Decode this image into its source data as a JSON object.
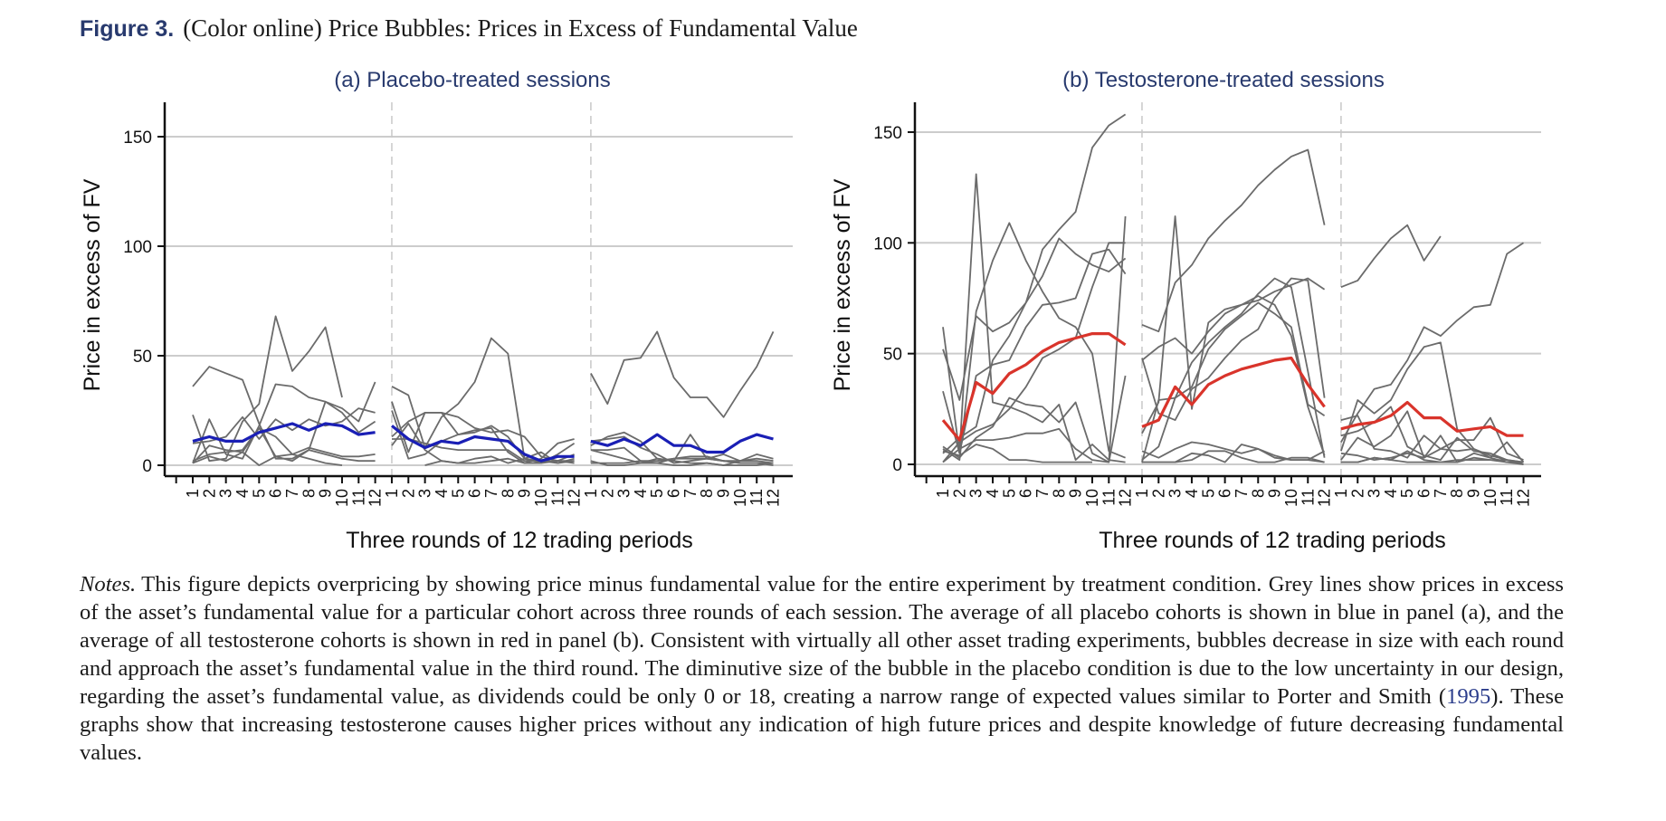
{
  "figure": {
    "label": "Figure 3.",
    "caption": "(Color online) Price Bubbles: Prices in Excess of Fundamental Value"
  },
  "notes": {
    "label": "Notes.",
    "text_before_cite": "This figure depicts overpricing by showing price minus fundamental value for the entire experiment by treatment condition. Grey lines show prices in excess of the asset’s fundamental value for a particular cohort across three rounds of each session. The average of all placebo cohorts is shown in blue in panel (a), and the average of all testosterone cohorts is shown in red in panel (b). Consistent with virtually all other asset trading experiments, bubbles decrease in size with each round and approach the asset’s fundamental value in the third round. The diminutive size of the bubble in the placebo condition is due to the low uncertainty in our design, regarding the asset’s fundamental value, as dividends could be only 0 or 18, creating a narrow range of expected values similar to Porter and Smith (",
    "cite": "1995",
    "text_after_cite": "). These graphs show that increasing testosterone causes higher prices without any indication of high future prices and despite knowledge of future decreasing fundamental values."
  },
  "colors": {
    "cohort_line": "#6b6b6b",
    "placebo_average": "#1a1fb5",
    "testosterone_average": "#d9342b",
    "gridline": "#cccccc",
    "round_separator": "#c8c8c8",
    "title_blue": "#283a6e"
  },
  "chart_data": [
    {
      "type": "line",
      "title": "(a) Placebo-treated sessions",
      "xlabel": "Three rounds of 12 trading periods",
      "ylabel": "Price in excess of FV",
      "ylim": [
        -7,
        165
      ],
      "yticks": [
        0,
        50,
        100,
        150
      ],
      "grid": true,
      "rounds": 3,
      "periods_per_round": 12,
      "xtick_labels": [
        "1",
        "2",
        "3",
        "4",
        "5",
        "6",
        "7",
        "8",
        "9",
        "10",
        "11",
        "12",
        "1",
        "2",
        "3",
        "4",
        "5",
        "6",
        "7",
        "8",
        "9",
        "10",
        "11",
        "12",
        "1",
        "2",
        "3",
        "4",
        "5",
        "6",
        "7",
        "8",
        "9",
        "10",
        "11",
        "12"
      ],
      "average": {
        "name": "Placebo average",
        "rounds": [
          [
            11,
            13,
            11,
            11,
            15,
            17,
            19,
            16,
            19,
            18,
            14,
            15
          ],
          [
            18,
            12,
            8,
            11,
            10,
            13,
            12,
            11,
            5,
            2,
            4,
            4
          ],
          [
            11,
            9,
            12,
            9,
            14,
            9,
            9,
            6,
            6,
            11,
            14,
            12
          ]
        ]
      },
      "cohorts": [
        {
          "rounds": [
            [
              36,
              45,
              42,
              39,
              19,
              3,
              3,
              7,
              5,
              3,
              2,
              2
            ],
            [
              36,
              32,
              8,
              22,
              28,
              38,
              58,
              51,
              3,
              1,
              5,
              10
            ],
            [
              42,
              28,
              48,
              49,
              61,
              40,
              31,
              31,
              22,
              34,
              45,
              61
            ]
          ]
        },
        {
          "rounds": [
            [
              23,
              2,
              3,
              20,
              28,
              68,
              43,
              52,
              63,
              31,
              null,
              null
            ],
            [
              29,
              6,
              24,
              24,
              22,
              17,
              15,
              16,
              13,
              4,
              2,
              2
            ],
            [
              7,
              7,
              8,
              2,
              2,
              3,
              4,
              4,
              2,
              1,
              1,
              1
            ]
          ]
        },
        {
          "rounds": [
            [
              1,
              21,
              5,
              3,
              18,
              37,
              36,
              31,
              29,
              24,
              15,
              20
            ],
            [
              13,
              20,
              24,
              24,
              14,
              15,
              18,
              13,
              3,
              2,
              1,
              2
            ],
            [
              9,
              13,
              15,
              11,
              3,
              2,
              14,
              3,
              2,
              2,
              2,
              1
            ]
          ]
        },
        {
          "rounds": [
            [
              1,
              9,
              7,
              6,
              0,
              4,
              2,
              7,
              29,
              26,
              20,
              38
            ],
            [
              9,
              19,
              7,
              2,
              1,
              1,
              2,
              3,
              1,
              3,
              10,
              12
            ],
            [
              11,
              12,
              13,
              8,
              5,
              1,
              2,
              3,
              5,
              2,
              3,
              2
            ]
          ]
        },
        {
          "rounds": [
            [
              10,
              11,
              13,
              22,
              12,
              21,
              16,
              21,
              18,
              20,
              26,
              24
            ],
            [
              25,
              3,
              5,
              11,
              14,
              16,
              17,
              6,
              1,
              1,
              2,
              5
            ],
            [
              2,
              0,
              0,
              1,
              3,
              2,
              1,
              1,
              0,
              2,
              5,
              3
            ]
          ]
        },
        {
          "rounds": [
            [
              1,
              4,
              2,
              6,
              17,
              13,
              5,
              3,
              1,
              0,
              null,
              1
            ],
            [
              null,
              null,
              0,
              2,
              1,
              3,
              4,
              1,
              3,
              6,
              1,
              3
            ],
            [
              1,
              1,
              1,
              2,
              1,
              0,
              0,
              1,
              0,
              0,
              0,
              1
            ]
          ]
        },
        {
          "rounds": [
            [
              2,
              5,
              6,
              7,
              17,
              4,
              5,
              8,
              6,
              4,
              4,
              5
            ],
            [
              12,
              12,
              10,
              8,
              7,
              7,
              7,
              7,
              2,
              2,
              2,
              1
            ],
            [
              7,
              5,
              3,
              1,
              1,
              3,
              3,
              3,
              2,
              1,
              1,
              0
            ]
          ]
        }
      ]
    },
    {
      "type": "line",
      "title": "(b) Testosterone-treated sessions",
      "xlabel": "Three rounds of 12 trading periods",
      "ylabel": "Price in excess of FV",
      "ylim": [
        -7,
        165
      ],
      "yticks": [
        0,
        50,
        100,
        150
      ],
      "grid": true,
      "rounds": 3,
      "periods_per_round": 12,
      "xtick_labels": [
        "1",
        "2",
        "3",
        "4",
        "5",
        "6",
        "7",
        "8",
        "9",
        "10",
        "11",
        "12",
        "1",
        "2",
        "3",
        "4",
        "5",
        "6",
        "7",
        "8",
        "9",
        "10",
        "11",
        "12",
        "1",
        "2",
        "3",
        "4",
        "5",
        "6",
        "7",
        "8",
        "9",
        "10",
        "11",
        "12"
      ],
      "average": {
        "name": "Testosterone average",
        "rounds": [
          [
            20,
            11,
            37,
            32,
            41,
            45,
            51,
            55,
            57,
            59,
            59,
            54
          ],
          [
            17,
            20,
            35,
            27,
            36,
            40,
            43,
            45,
            47,
            48,
            36,
            26
          ],
          [
            16,
            18,
            19,
            22,
            28,
            21,
            21,
            15,
            16,
            17,
            13,
            13
          ]
        ]
      },
      "cohorts": [
        {
          "rounds": [
            [
              62,
              5,
              131,
              28,
              26,
              23,
              19,
              27,
              2,
              9,
              2,
              1
            ],
            [
              63,
              60,
              82,
              90,
              102,
              110,
              117,
              126,
              133,
              139,
              142,
              108
            ],
            [
              80,
              83,
              93,
              102,
              108,
              92,
              103,
              null,
              null,
              null,
              null,
              null
            ]
          ]
        },
        {
          "rounds": [
            [
              52,
              29,
              67,
              60,
              64,
              73,
              85,
              102,
              95,
              90,
              87,
              93
            ],
            [
              47,
              53,
              57,
              50,
              60,
              68,
              72,
              74,
              78,
              81,
              84,
              79
            ],
            [
              20,
              22,
              7,
              6,
              3,
              13,
              7,
              11,
              11,
              21,
              5,
              2
            ]
          ]
        },
        {
          "rounds": [
            [
              33,
              5,
              40,
              45,
              47,
              62,
              72,
              73,
              75,
              95,
              97,
              86
            ],
            [
              14,
              28,
              112,
              25,
              64,
              70,
              72,
              76,
              72,
              58,
              26,
              4
            ],
            [
              10,
              23,
              34,
              36,
              47,
              62,
              58,
              65,
              71,
              72,
              95,
              100
            ]
          ]
        },
        {
          "rounds": [
            [
              7,
              2,
              69,
              92,
              109,
              92,
              78,
              66,
              62,
              50,
              6,
              3
            ],
            [
              1,
              29,
              30,
              35,
              52,
              61,
              67,
              73,
              68,
              62,
              27,
              22
            ],
            [
              6,
              29,
              23,
              29,
              43,
              53,
              55,
              16,
              7,
              3,
              10,
              1
            ]
          ]
        },
        {
          "rounds": [
            [
              5,
              12,
              17,
              47,
              58,
              73,
              97,
              106,
              114,
              143,
              153,
              158
            ],
            [
              2,
              8,
              30,
              46,
              55,
              62,
              68,
              77,
              84,
              80,
              42,
              3
            ],
            [
              13,
              15,
              19,
              26,
              8,
              4,
              2,
              12,
              6,
              5,
              2,
              0
            ]
          ]
        },
        {
          "rounds": [
            [
              8,
              3,
              12,
              17,
              30,
              27,
              26,
              19,
              28,
              5,
              1,
              40
            ],
            [
              48,
              23,
              20,
              34,
              39,
              48,
              56,
              61,
              75,
              84,
              83,
              30
            ],
            [
              2,
              12,
              8,
              13,
              24,
              3,
              13,
              1,
              5,
              3,
              1,
              0
            ]
          ]
        },
        {
          "rounds": [
            [
              1,
              7,
              11,
              11,
              12,
              14,
              14,
              16,
              7,
              2,
              1,
              112
            ],
            [
              1,
              1,
              1,
              5,
              4,
              1,
              9,
              7,
              4,
              2,
              2,
              1
            ],
            [
              5,
              4,
              2,
              3,
              5,
              3,
              7,
              6,
              7,
              4,
              2,
              1
            ]
          ]
        },
        {
          "rounds": [
            [
              6,
              4,
              9,
              7,
              2,
              2,
              1,
              1,
              1,
              1,
              null,
              null
            ],
            [
              6,
              3,
              7,
              10,
              9,
              7,
              5,
              7,
              3,
              2,
              2,
              6
            ],
            [
              1,
              1,
              3,
              2,
              6,
              2,
              1,
              2,
              2,
              2,
              2,
              1
            ]
          ]
        },
        {
          "rounds": [
            [
              1,
              10,
              15,
              18,
              25,
              35,
              48,
              52,
              57,
              80,
              100,
              100
            ],
            [
              1,
              1,
              1,
              2,
              6,
              6,
              3,
              1,
              1,
              3,
              3,
              1
            ],
            [
              1,
              1,
              3,
              2,
              1,
              1,
              1,
              1,
              3,
              2,
              1,
              1
            ]
          ]
        }
      ]
    }
  ]
}
